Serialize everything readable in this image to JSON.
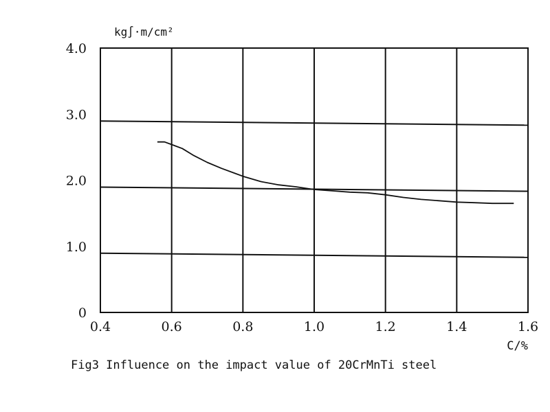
{
  "chart_data": {
    "type": "line",
    "xlabel": "C/%",
    "ylabel": "kg∫·m/cm²",
    "xlim": [
      0.4,
      1.6
    ],
    "ylim": [
      0,
      4.0
    ],
    "x_ticks": [
      0.4,
      0.6,
      0.8,
      1.0,
      1.2,
      1.4,
      1.6
    ],
    "x_tick_labels": [
      "0.4",
      "0.6",
      "0.8",
      "1.0",
      "1.2",
      "1.4",
      "1.6"
    ],
    "y_ticks": [
      0,
      1.0,
      2.0,
      3.0,
      4.0
    ],
    "y_tick_labels": [
      "0",
      "1.0",
      "2.0",
      "3.0",
      "4.0"
    ],
    "grid": true,
    "series": [
      {
        "x": [
          0.56,
          0.58,
          0.6,
          0.63,
          0.66,
          0.7,
          0.74,
          0.78,
          0.8,
          0.85,
          0.9,
          0.95,
          1.0,
          1.05,
          1.1,
          1.15,
          1.2,
          1.25,
          1.3,
          1.35,
          1.4,
          1.45,
          1.5,
          1.56
        ],
        "y": [
          2.58,
          2.58,
          2.54,
          2.48,
          2.38,
          2.27,
          2.18,
          2.1,
          2.06,
          1.98,
          1.93,
          1.9,
          1.86,
          1.84,
          1.82,
          1.81,
          1.78,
          1.74,
          1.71,
          1.69,
          1.67,
          1.66,
          1.65,
          1.65
        ]
      }
    ]
  },
  "caption": "Fig3 Influence on the impact value of 20CrMnTi steel",
  "colors": {
    "line": "#111111",
    "grid": "#111111",
    "background": "#ffffff"
  }
}
